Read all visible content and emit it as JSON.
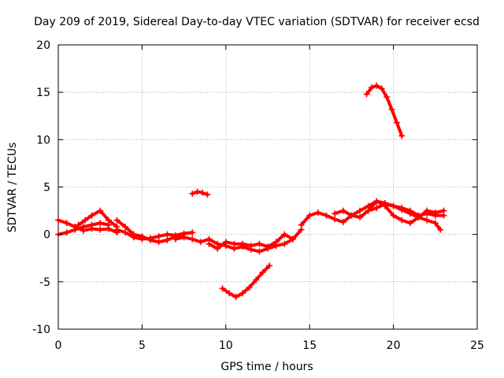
{
  "chart_data": {
    "type": "scatter",
    "title": "Day 209 of 2019, Sidereal Day-to-day VTEC variation (SDTVAR) for receiver ecsd",
    "xlabel": "GPS time / hours",
    "ylabel": "SDTVAR / TECUs",
    "xlim": [
      0,
      25
    ],
    "ylim": [
      -10,
      20
    ],
    "xticks": [
      0,
      5,
      10,
      15,
      20,
      25
    ],
    "yticks": [
      -10,
      -5,
      0,
      5,
      10,
      15,
      20
    ],
    "grid": true,
    "legend": "none",
    "marker": "+",
    "series": [
      {
        "name": "trace-1",
        "color": "#ff0000",
        "x": [
          0.0,
          0.5,
          1.0,
          1.5,
          2.0,
          2.5,
          3.0
        ],
        "y": [
          0.0,
          0.2,
          0.5,
          0.8,
          1.0,
          1.2,
          1.0
        ]
      },
      {
        "name": "trace-2",
        "color": "#ff0000",
        "x": [
          0.0,
          0.5,
          1.0,
          1.5,
          2.0,
          2.5,
          3.0,
          3.5
        ],
        "y": [
          1.5,
          1.2,
          0.8,
          0.4,
          0.6,
          0.5,
          0.6,
          0.2
        ]
      },
      {
        "name": "trace-3",
        "color": "#ff0000",
        "x": [
          1.2,
          1.6,
          2.0,
          2.5,
          3.0,
          3.5
        ],
        "y": [
          1.0,
          1.5,
          2.0,
          2.5,
          1.5,
          0.8
        ]
      },
      {
        "name": "trace-4",
        "color": "#ff0000",
        "x": [
          3.5,
          4.0,
          4.5,
          5.0,
          5.5,
          6.0,
          6.5,
          7.0,
          7.5
        ],
        "y": [
          1.5,
          0.8,
          0.0,
          -0.2,
          -0.6,
          -0.8,
          -0.6,
          -0.2,
          0.0
        ]
      },
      {
        "name": "trace-5",
        "color": "#ff0000",
        "x": [
          3.5,
          4.0,
          4.5,
          5.0,
          5.5,
          6.0,
          6.5,
          7.0,
          7.5,
          8.0
        ],
        "y": [
          0.5,
          0.2,
          -0.3,
          -0.5,
          -0.4,
          -0.2,
          0.0,
          -0.1,
          0.1,
          0.2
        ]
      },
      {
        "name": "trace-6",
        "color": "#ff0000",
        "x": [
          7.0,
          7.5,
          8.0,
          8.5,
          9.0,
          9.5,
          10.0,
          10.5,
          11.0,
          11.5,
          12.0,
          12.5,
          13.0,
          13.5,
          14.0,
          14.5
        ],
        "y": [
          -0.5,
          -0.3,
          -0.5,
          -0.8,
          -0.5,
          -1.0,
          -1.2,
          -1.5,
          -1.3,
          -1.6,
          -1.8,
          -1.5,
          -1.2,
          -1.0,
          -0.5,
          0.5
        ]
      },
      {
        "name": "trace-7",
        "color": "#ff0000",
        "x": [
          9.0,
          9.5,
          10.0,
          10.5,
          11.0,
          11.5,
          12.0,
          12.5,
          13.0,
          13.5,
          14.0
        ],
        "y": [
          -1.0,
          -1.5,
          -0.8,
          -1.0,
          -1.0,
          -1.2,
          -1.0,
          -1.3,
          -0.8,
          0.0,
          -0.5
        ]
      },
      {
        "name": "trace-8",
        "color": "#ff0000",
        "x": [
          8.0,
          8.3,
          8.6,
          8.9
        ],
        "y": [
          4.3,
          4.5,
          4.4,
          4.2
        ]
      },
      {
        "name": "trace-9",
        "color": "#ff0000",
        "x": [
          9.8,
          10.2,
          10.6,
          11.0,
          11.4,
          11.8,
          12.2,
          12.6
        ],
        "y": [
          -5.7,
          -6.2,
          -6.6,
          -6.2,
          -5.6,
          -4.8,
          -4.0,
          -3.3
        ]
      },
      {
        "name": "trace-10",
        "color": "#ff0000",
        "x": [
          14.5,
          15.0,
          15.5,
          16.0,
          16.5,
          17.0,
          17.5,
          18.0,
          18.5,
          19.0,
          19.5,
          20.0,
          20.5,
          21.0,
          21.5,
          22.0,
          22.5,
          23.0
        ],
        "y": [
          1.0,
          2.0,
          2.3,
          2.0,
          1.6,
          1.3,
          2.0,
          2.5,
          3.0,
          3.5,
          3.3,
          3.0,
          2.8,
          2.5,
          2.0,
          2.2,
          2.0,
          2.0
        ]
      },
      {
        "name": "trace-11",
        "color": "#ff0000",
        "x": [
          16.5,
          17.0,
          17.5,
          18.0,
          18.5,
          19.0,
          19.5,
          20.0,
          20.5,
          21.0,
          21.5,
          22.0,
          22.5,
          23.0
        ],
        "y": [
          2.2,
          2.5,
          2.0,
          1.8,
          2.5,
          3.5,
          3.0,
          2.0,
          1.5,
          1.2,
          1.8,
          2.5,
          2.3,
          2.5
        ]
      },
      {
        "name": "trace-12",
        "color": "#ff0000",
        "x": [
          18.5,
          19.0,
          19.5,
          20.0,
          20.5,
          21.0,
          21.5,
          22.0,
          22.5,
          22.8
        ],
        "y": [
          2.5,
          2.8,
          3.2,
          3.0,
          2.6,
          2.2,
          1.8,
          1.5,
          1.2,
          0.5
        ]
      },
      {
        "name": "trace-13",
        "color": "#ff0000",
        "x": [
          18.4,
          18.7,
          19.0,
          19.3,
          19.6,
          19.9,
          20.2,
          20.5
        ],
        "y": [
          14.8,
          15.5,
          15.7,
          15.4,
          14.5,
          13.2,
          11.8,
          10.4
        ]
      }
    ]
  }
}
